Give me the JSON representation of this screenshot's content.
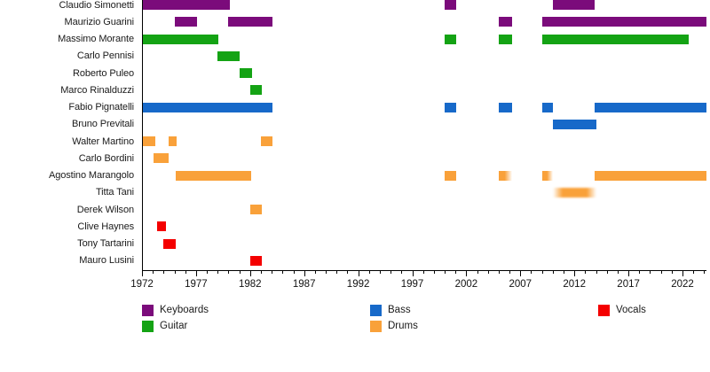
{
  "colors": {
    "keyboards": "#7B0B7B",
    "guitar": "#14A314",
    "bass": "#1769C9",
    "drums": "#F9A13A",
    "vocals": "#F40000",
    "axis": "#000000",
    "text": "#1A1A1A",
    "background": "#FFFFFF"
  },
  "chart_data": {
    "type": "timeline",
    "x_axis": {
      "min": 1972,
      "max": 2024.2,
      "major_ticks": [
        1972,
        1977,
        1982,
        1987,
        1992,
        1997,
        2002,
        2007,
        2012,
        2017,
        2022
      ],
      "minor_tick_step": 1
    },
    "legend": {
      "columns": [
        [
          {
            "label": "Keyboards",
            "role": "keyboards"
          },
          {
            "label": "Guitar",
            "role": "guitar"
          }
        ],
        [
          {
            "label": "Bass",
            "role": "bass"
          },
          {
            "label": "Drums",
            "role": "drums"
          }
        ],
        [
          {
            "label": "Vocals",
            "role": "vocals"
          }
        ]
      ]
    },
    "members": [
      {
        "name": "Claudio Simonetti",
        "role": "keyboards",
        "segments": [
          {
            "from": 1972,
            "to": 1980.1
          },
          {
            "from": 2000,
            "to": 2001.1
          },
          {
            "from": 2010,
            "to": 2013.9
          }
        ]
      },
      {
        "name": "Maurizio Guarini",
        "role": "keyboards",
        "segments": [
          {
            "from": 1975,
            "to": 1977.1
          },
          {
            "from": 1980,
            "to": 1984.1
          },
          {
            "from": 2005,
            "to": 2006.2
          },
          {
            "from": 2009,
            "to": 2024.2
          }
        ]
      },
      {
        "name": "Massimo Morante",
        "role": "guitar",
        "segments": [
          {
            "from": 1972,
            "to": 1979.1
          },
          {
            "from": 2000,
            "to": 2001.1
          },
          {
            "from": 2005,
            "to": 2006.2
          },
          {
            "from": 2009,
            "to": 2022.6
          }
        ]
      },
      {
        "name": "Carlo Pennisi",
        "role": "guitar",
        "segments": [
          {
            "from": 1979,
            "to": 1981
          }
        ]
      },
      {
        "name": "Roberto Puleo",
        "role": "guitar",
        "segments": [
          {
            "from": 1981,
            "to": 1982.2
          }
        ]
      },
      {
        "name": "Marco Rinalduzzi",
        "role": "guitar",
        "segments": [
          {
            "from": 1982,
            "to": 1983.1
          }
        ]
      },
      {
        "name": "Fabio Pignatelli",
        "role": "bass",
        "segments": [
          {
            "from": 1972,
            "to": 1984.1
          },
          {
            "from": 2000,
            "to": 2001.1
          },
          {
            "from": 2005,
            "to": 2006.2
          },
          {
            "from": 2009,
            "to": 2010
          },
          {
            "from": 2013.9,
            "to": 2024.2
          }
        ]
      },
      {
        "name": "Bruno Previtali",
        "role": "bass",
        "segments": [
          {
            "from": 2010,
            "to": 2014
          }
        ]
      },
      {
        "name": "Walter Martino",
        "role": "drums",
        "segments": [
          {
            "from": 1972,
            "to": 1973.2
          },
          {
            "from": 1974.5,
            "to": 1975.2
          },
          {
            "from": 1983,
            "to": 1984.1
          }
        ]
      },
      {
        "name": "Carlo Bordini",
        "role": "drums",
        "segments": [
          {
            "from": 1973.1,
            "to": 1974.5
          }
        ]
      },
      {
        "name": "Agostino Marangolo",
        "role": "drums",
        "segments": [
          {
            "from": 1975.1,
            "to": 1982.1
          },
          {
            "from": 2000,
            "to": 2001.1
          },
          {
            "from": 2005,
            "to": 2006.2,
            "fade": "right"
          },
          {
            "from": 2009,
            "to": 2010,
            "fade": "right"
          },
          {
            "from": 2013.9,
            "to": 2024.2
          }
        ]
      },
      {
        "name": "Titta Tani",
        "role": "drums",
        "segments": [
          {
            "from": 2010,
            "to": 2014,
            "fade": "both"
          }
        ]
      },
      {
        "name": "Derek Wilson",
        "role": "drums",
        "segments": [
          {
            "from": 1982,
            "to": 1983.1
          }
        ]
      },
      {
        "name": "Clive Haynes",
        "role": "vocals",
        "segments": [
          {
            "from": 1973.4,
            "to": 1974.2
          }
        ]
      },
      {
        "name": "Tony Tartarini",
        "role": "vocals",
        "segments": [
          {
            "from": 1974,
            "to": 1975.1
          }
        ]
      },
      {
        "name": "Mauro Lusini",
        "role": "vocals",
        "segments": [
          {
            "from": 1982,
            "to": 1983.1
          }
        ]
      }
    ]
  }
}
